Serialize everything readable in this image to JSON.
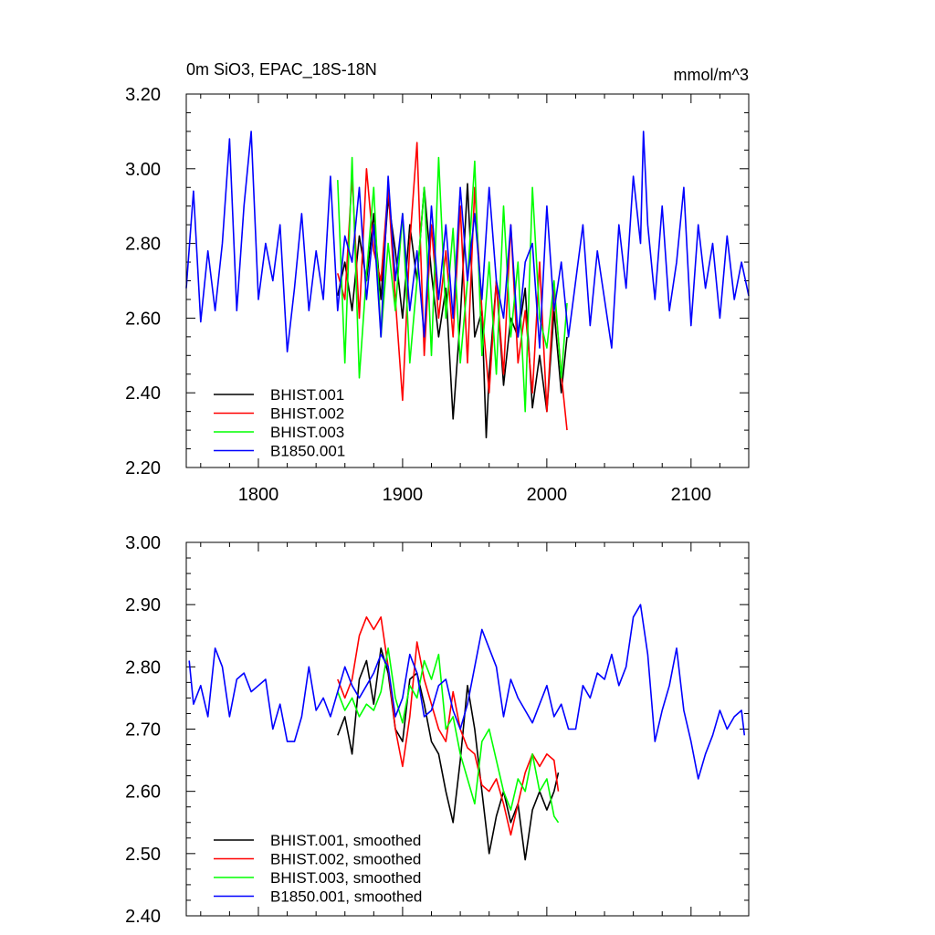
{
  "chart_data": [
    {
      "type": "line",
      "title": "0m SiO3, EPAC_18S-18N",
      "units": "mmol/m^3",
      "xlim": [
        1750,
        2140
      ],
      "ylim": [
        2.2,
        3.2
      ],
      "xticks": [
        1800,
        1900,
        2000,
        2100
      ],
      "xtick_labels": [
        "1800",
        "1900",
        "2000",
        "2100"
      ],
      "yticks": [
        2.2,
        2.4,
        2.6,
        2.8,
        3.0,
        3.2
      ],
      "ytick_labels": [
        "2.20",
        "2.40",
        "2.60",
        "2.80",
        "3.00",
        "3.20"
      ],
      "legend": [
        "BHIST.001",
        "BHIST.002",
        "BHIST.003",
        "B1850.001"
      ],
      "legend_position": "bottom-left",
      "series": [
        {
          "name": "BHIST.001",
          "color": "#000000",
          "x": [
            1855,
            1860,
            1865,
            1870,
            1875,
            1880,
            1885,
            1890,
            1895,
            1900,
            1905,
            1910,
            1915,
            1920,
            1925,
            1930,
            1935,
            1940,
            1945,
            1950,
            1955,
            1958,
            1960,
            1965,
            1970,
            1975,
            1980,
            1985,
            1990,
            1995,
            2000,
            2005,
            2010,
            2014
          ],
          "y": [
            2.66,
            2.75,
            2.62,
            2.82,
            2.7,
            2.88,
            2.65,
            2.92,
            2.78,
            2.6,
            2.85,
            2.7,
            2.95,
            2.72,
            2.55,
            2.68,
            2.33,
            2.6,
            2.96,
            2.55,
            2.62,
            2.28,
            2.45,
            2.7,
            2.42,
            2.6,
            2.55,
            2.68,
            2.36,
            2.5,
            2.35,
            2.62,
            2.4,
            2.55
          ]
        },
        {
          "name": "BHIST.002",
          "color": "#ff0000",
          "x": [
            1855,
            1860,
            1865,
            1870,
            1875,
            1880,
            1885,
            1890,
            1895,
            1900,
            1905,
            1910,
            1915,
            1920,
            1925,
            1930,
            1935,
            1940,
            1945,
            1950,
            1955,
            1960,
            1965,
            1970,
            1975,
            1980,
            1985,
            1990,
            1995,
            2000,
            2005,
            2010,
            2014
          ],
          "y": [
            2.72,
            2.65,
            2.98,
            2.6,
            3.0,
            2.78,
            2.7,
            2.95,
            2.65,
            2.38,
            2.8,
            3.07,
            2.5,
            2.85,
            2.6,
            2.78,
            2.55,
            2.9,
            2.48,
            2.95,
            2.62,
            2.4,
            2.7,
            2.45,
            2.85,
            2.48,
            2.62,
            2.4,
            2.75,
            2.35,
            2.68,
            2.45,
            2.3
          ]
        },
        {
          "name": "BHIST.003",
          "color": "#00ff00",
          "x": [
            1855,
            1860,
            1865,
            1870,
            1875,
            1880,
            1885,
            1890,
            1895,
            1900,
            1905,
            1910,
            1915,
            1920,
            1925,
            1930,
            1935,
            1940,
            1945,
            1950,
            1955,
            1960,
            1965,
            1970,
            1975,
            1980,
            1985,
            1990,
            1995,
            2000,
            2005,
            2010,
            2014
          ],
          "y": [
            2.97,
            2.48,
            3.03,
            2.44,
            2.72,
            2.95,
            2.55,
            2.8,
            2.62,
            2.88,
            2.48,
            2.7,
            2.95,
            2.5,
            3.03,
            2.6,
            2.84,
            2.48,
            2.7,
            3.02,
            2.5,
            2.75,
            2.45,
            2.9,
            2.55,
            2.75,
            2.35,
            2.95,
            2.6,
            2.52,
            2.7,
            2.44,
            2.64
          ]
        },
        {
          "name": "B1850.001",
          "color": "#0000ff",
          "x": [
            1750,
            1755,
            1760,
            1765,
            1770,
            1775,
            1780,
            1785,
            1790,
            1795,
            1800,
            1805,
            1810,
            1815,
            1820,
            1825,
            1830,
            1835,
            1840,
            1845,
            1850,
            1855,
            1860,
            1865,
            1870,
            1875,
            1880,
            1885,
            1890,
            1895,
            1900,
            1905,
            1910,
            1915,
            1920,
            1925,
            1930,
            1935,
            1940,
            1945,
            1950,
            1955,
            1960,
            1965,
            1970,
            1975,
            1980,
            1985,
            1990,
            1995,
            2000,
            2005,
            2010,
            2015,
            2020,
            2025,
            2030,
            2035,
            2040,
            2045,
            2050,
            2055,
            2060,
            2065,
            2067,
            2070,
            2075,
            2080,
            2085,
            2090,
            2095,
            2100,
            2105,
            2110,
            2115,
            2120,
            2125,
            2130,
            2135,
            2140
          ],
          "y": [
            2.68,
            2.94,
            2.59,
            2.78,
            2.62,
            2.8,
            3.08,
            2.62,
            2.9,
            3.1,
            2.65,
            2.8,
            2.7,
            2.85,
            2.51,
            2.68,
            2.88,
            2.62,
            2.78,
            2.65,
            2.98,
            2.62,
            2.82,
            2.75,
            2.95,
            2.65,
            2.85,
            2.55,
            2.98,
            2.7,
            2.88,
            2.62,
            2.78,
            2.55,
            2.9,
            2.65,
            2.85,
            2.6,
            2.95,
            2.7,
            2.88,
            2.65,
            2.95,
            2.7,
            2.6,
            2.85,
            2.55,
            2.75,
            2.8,
            2.52,
            2.9,
            2.62,
            2.75,
            2.55,
            2.7,
            2.85,
            2.58,
            2.78,
            2.65,
            2.52,
            2.85,
            2.68,
            2.98,
            2.8,
            3.1,
            2.85,
            2.65,
            2.9,
            2.62,
            2.75,
            2.95,
            2.58,
            2.85,
            2.68,
            2.8,
            2.6,
            2.82,
            2.65,
            2.75,
            2.66
          ]
        }
      ]
    },
    {
      "type": "line",
      "xlim": [
        1750,
        2140
      ],
      "ylim": [
        2.4,
        3.0
      ],
      "xticks": [
        1800,
        1900,
        2000,
        2100
      ],
      "yticks": [
        2.4,
        2.5,
        2.6,
        2.7,
        2.8,
        2.9,
        3.0
      ],
      "ytick_labels": [
        "2.40",
        "2.50",
        "2.60",
        "2.70",
        "2.80",
        "2.90",
        "3.00"
      ],
      "legend": [
        "BHIST.001, smoothed",
        "BHIST.002, smoothed",
        "BHIST.003, smoothed",
        "B1850.001, smoothed"
      ],
      "legend_position": "bottom-left",
      "series": [
        {
          "name": "BHIST.001, smoothed",
          "color": "#000000",
          "x": [
            1855,
            1860,
            1865,
            1870,
            1875,
            1880,
            1885,
            1890,
            1895,
            1900,
            1905,
            1910,
            1915,
            1920,
            1925,
            1930,
            1935,
            1940,
            1945,
            1950,
            1955,
            1960,
            1965,
            1970,
            1975,
            1980,
            1985,
            1990,
            1995,
            2000,
            2005,
            2008
          ],
          "y": [
            2.69,
            2.72,
            2.66,
            2.78,
            2.81,
            2.74,
            2.83,
            2.79,
            2.7,
            2.68,
            2.78,
            2.79,
            2.74,
            2.68,
            2.66,
            2.6,
            2.55,
            2.65,
            2.77,
            2.7,
            2.6,
            2.5,
            2.56,
            2.6,
            2.55,
            2.58,
            2.49,
            2.57,
            2.6,
            2.57,
            2.6,
            2.63
          ]
        },
        {
          "name": "BHIST.002, smoothed",
          "color": "#ff0000",
          "x": [
            1855,
            1860,
            1865,
            1870,
            1875,
            1880,
            1885,
            1890,
            1895,
            1900,
            1905,
            1910,
            1915,
            1920,
            1925,
            1930,
            1935,
            1940,
            1945,
            1950,
            1955,
            1960,
            1965,
            1970,
            1975,
            1980,
            1985,
            1990,
            1995,
            2000,
            2005,
            2008
          ],
          "y": [
            2.78,
            2.75,
            2.78,
            2.85,
            2.88,
            2.86,
            2.88,
            2.8,
            2.7,
            2.64,
            2.72,
            2.84,
            2.78,
            2.74,
            2.7,
            2.68,
            2.76,
            2.7,
            2.67,
            2.66,
            2.61,
            2.6,
            2.62,
            2.58,
            2.53,
            2.58,
            2.63,
            2.66,
            2.64,
            2.66,
            2.65,
            2.6
          ]
        },
        {
          "name": "BHIST.003, smoothed",
          "color": "#00ff00",
          "x": [
            1855,
            1860,
            1865,
            1870,
            1875,
            1880,
            1885,
            1890,
            1895,
            1900,
            1905,
            1910,
            1915,
            1920,
            1925,
            1930,
            1935,
            1940,
            1945,
            1950,
            1955,
            1960,
            1965,
            1970,
            1975,
            1980,
            1985,
            1990,
            1995,
            2000,
            2005,
            2008
          ],
          "y": [
            2.76,
            2.73,
            2.75,
            2.72,
            2.74,
            2.73,
            2.76,
            2.83,
            2.75,
            2.71,
            2.77,
            2.75,
            2.81,
            2.78,
            2.82,
            2.7,
            2.72,
            2.66,
            2.62,
            2.58,
            2.68,
            2.7,
            2.65,
            2.6,
            2.57,
            2.62,
            2.6,
            2.66,
            2.6,
            2.62,
            2.56,
            2.55
          ]
        },
        {
          "name": "B1850.001, smoothed",
          "color": "#0000ff",
          "x": [
            1752,
            1755,
            1760,
            1765,
            1770,
            1775,
            1780,
            1785,
            1790,
            1795,
            1800,
            1805,
            1810,
            1815,
            1820,
            1825,
            1830,
            1835,
            1840,
            1845,
            1850,
            1855,
            1860,
            1865,
            1870,
            1875,
            1880,
            1885,
            1890,
            1895,
            1900,
            1905,
            1910,
            1915,
            1920,
            1925,
            1930,
            1935,
            1940,
            1945,
            1950,
            1955,
            1960,
            1965,
            1970,
            1975,
            1980,
            1985,
            1990,
            1995,
            2000,
            2005,
            2010,
            2015,
            2020,
            2025,
            2030,
            2035,
            2040,
            2045,
            2050,
            2055,
            2060,
            2065,
            2070,
            2075,
            2080,
            2085,
            2090,
            2095,
            2100,
            2105,
            2110,
            2115,
            2120,
            2125,
            2130,
            2135,
            2137
          ],
          "y": [
            2.81,
            2.74,
            2.77,
            2.72,
            2.83,
            2.8,
            2.72,
            2.78,
            2.79,
            2.76,
            2.77,
            2.78,
            2.7,
            2.74,
            2.68,
            2.68,
            2.72,
            2.8,
            2.73,
            2.75,
            2.72,
            2.76,
            2.8,
            2.77,
            2.75,
            2.77,
            2.79,
            2.82,
            2.8,
            2.72,
            2.75,
            2.82,
            2.79,
            2.72,
            2.73,
            2.77,
            2.78,
            2.73,
            2.7,
            2.74,
            2.8,
            2.86,
            2.83,
            2.8,
            2.72,
            2.78,
            2.75,
            2.73,
            2.71,
            2.74,
            2.77,
            2.72,
            2.74,
            2.7,
            2.7,
            2.77,
            2.75,
            2.79,
            2.78,
            2.82,
            2.77,
            2.8,
            2.88,
            2.9,
            2.82,
            2.68,
            2.73,
            2.77,
            2.83,
            2.73,
            2.68,
            2.62,
            2.66,
            2.69,
            2.73,
            2.7,
            2.72,
            2.73,
            2.69
          ]
        }
      ]
    }
  ]
}
